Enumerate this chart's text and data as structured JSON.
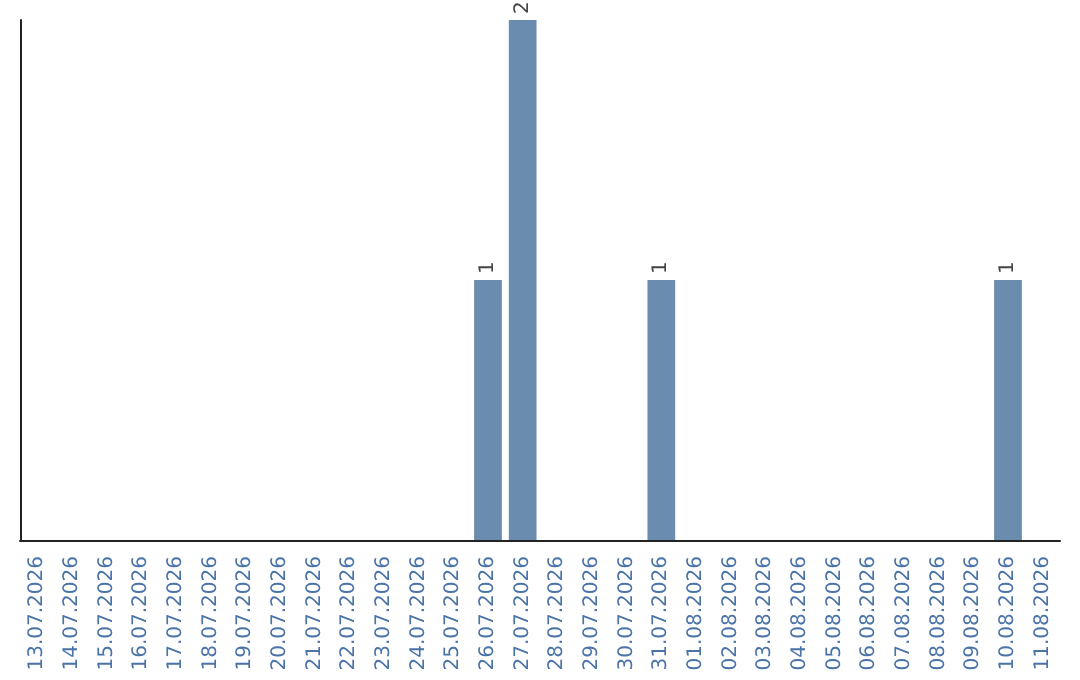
{
  "chart_data": {
    "type": "bar",
    "categories": [
      "13.07.2026",
      "14.07.2026",
      "15.07.2026",
      "16.07.2026",
      "17.07.2026",
      "18.07.2026",
      "19.07.2026",
      "20.07.2026",
      "21.07.2026",
      "22.07.2026",
      "23.07.2026",
      "24.07.2026",
      "25.07.2026",
      "26.07.2026",
      "27.07.2026",
      "28.07.2026",
      "29.07.2026",
      "30.07.2026",
      "31.07.2026",
      "01.08.2026",
      "02.08.2026",
      "03.08.2026",
      "04.08.2026",
      "05.08.2026",
      "06.08.2026",
      "07.08.2026",
      "08.08.2026",
      "09.08.2026",
      "10.08.2026",
      "11.08.2026"
    ],
    "values": [
      null,
      null,
      null,
      null,
      null,
      null,
      null,
      null,
      null,
      null,
      null,
      null,
      null,
      1,
      2,
      null,
      null,
      null,
      1,
      null,
      null,
      null,
      null,
      null,
      null,
      null,
      null,
      null,
      1,
      null
    ],
    "color": "#6a8caf",
    "data_labels": true,
    "tick_labels": "x",
    "grid": false
  }
}
